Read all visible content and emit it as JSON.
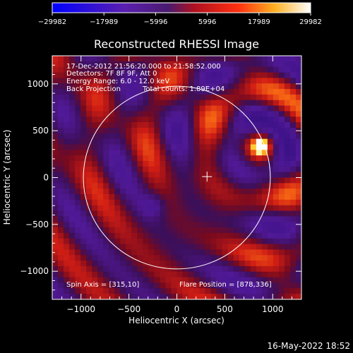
{
  "chart_data": {
    "type": "heatmap",
    "title": "Reconstructed RHESSI Image",
    "xlabel": "Heliocentric X (arcsec)",
    "ylabel": "Heliocentric Y (arcsec)",
    "xlim": [
      -1300,
      1300
    ],
    "ylim": [
      -1300,
      1300
    ],
    "x_ticks": [
      -1000,
      -500,
      0,
      500,
      1000
    ],
    "x_tick_labels": [
      "−1000",
      "−500",
      "0",
      "500",
      "1000"
    ],
    "y_ticks": [
      -1000,
      -500,
      0,
      500,
      1000
    ],
    "y_tick_labels": [
      "−1000",
      "−500",
      "0",
      "500",
      "1000"
    ],
    "colorbar": {
      "ticks": [
        -29982,
        -17989,
        -5996,
        5996,
        17989,
        29982
      ],
      "tick_labels": [
        "−29982",
        "−17989",
        "−5996",
        "5996",
        "17989",
        "29982"
      ],
      "range": [
        -29982,
        29982
      ]
    },
    "annotations": {
      "time_range": "17-Dec-2012 21:56:20.000 to 21:58:52.000",
      "detectors": "Detectors: 7F 8F 9F, Att 0",
      "energy": "Energy Range: 6.0 - 12.0 keV",
      "method": "Back Projection",
      "counts": "Total counts: 1.89E+04",
      "spin_axis": "Spin Axis = [315,10]",
      "flare_position_label": "Flare Position = [878,336]"
    },
    "flare_position": [
      878,
      336
    ],
    "spin_axis": [
      315,
      10
    ],
    "solar_disk_radius": 975,
    "grid": false
  },
  "footer": {
    "date": "16-May-2022 18:52"
  },
  "colors": {
    "background": "#000000",
    "foreground": "#ffffff",
    "colormap": [
      "#0000ff",
      "#4a1e9a",
      "#6a1fa8",
      "#cc1010",
      "#ff7a10",
      "#ffff00",
      "#ffffff"
    ]
  }
}
